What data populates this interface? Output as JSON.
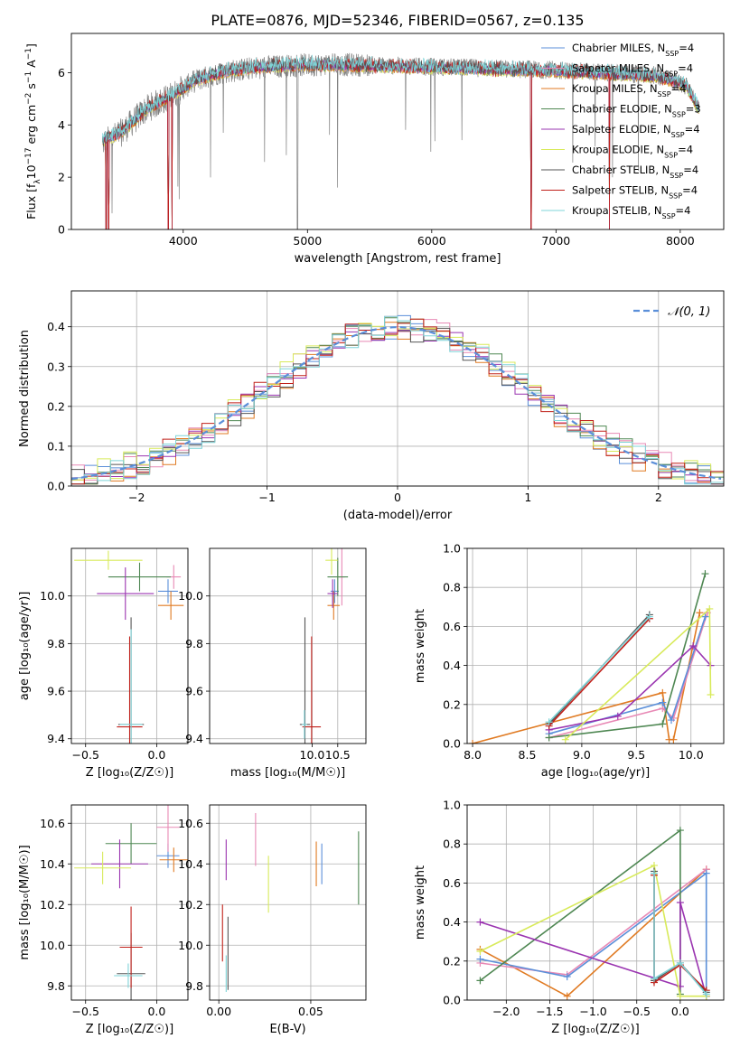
{
  "figure": {
    "title": "PLATE=0876, MJD=52346, FIBERID=0567, z=0.135"
  },
  "colors": {
    "chabrier_miles": "#5b8fd9",
    "salpeter_miles": "#e889b5",
    "kroupa_miles": "#e07a22",
    "chabrier_elodie": "#4e8752",
    "salpeter_elodie": "#9a34b0",
    "kroupa_elodie": "#d8ea5a",
    "chabrier_stelib": "#555555",
    "salpeter_stelib": "#c0201a",
    "kroupa_stelib": "#7fd4d8",
    "grid": "#b0b0b0",
    "normal_curve": "#5b8fd9"
  },
  "chart_data": [
    {
      "id": "spectrum",
      "type": "line",
      "xlabel": "wavelength [Angstrom, rest frame]",
      "ylabel_parts": [
        "Flux [f",
        "λ",
        "10",
        "−17",
        " erg cm",
        "−2",
        " s",
        "−1",
        " A",
        "−1",
        "]"
      ],
      "xlim": [
        3100,
        8350
      ],
      "ylim": [
        0,
        7.5
      ],
      "xticks": [
        4000,
        5000,
        6000,
        7000,
        8000
      ],
      "yticks": [
        0,
        2,
        4,
        6
      ],
      "grid": false,
      "legend_position": "right",
      "legend": [
        {
          "color_key": "chabrier_miles",
          "text": "Chabrier MILES, N",
          "sub": "SSP",
          "tail": "=4"
        },
        {
          "color_key": "salpeter_miles",
          "text": "Salpeter MILES, N",
          "sub": "SSP",
          "tail": "=4"
        },
        {
          "color_key": "kroupa_miles",
          "text": "Kroupa MILES, N",
          "sub": "SSP",
          "tail": "=4"
        },
        {
          "color_key": "chabrier_elodie",
          "text": "Chabrier ELODIE, N",
          "sub": "SSP",
          "tail": "=3"
        },
        {
          "color_key": "salpeter_elodie",
          "text": "Salpeter ELODIE, N",
          "sub": "SSP",
          "tail": "=4"
        },
        {
          "color_key": "kroupa_elodie",
          "text": "Kroupa ELODIE, N",
          "sub": "SSP",
          "tail": "=4"
        },
        {
          "color_key": "chabrier_stelib",
          "text": "Chabrier STELIB, N",
          "sub": "SSP",
          "tail": "=4"
        },
        {
          "color_key": "salpeter_stelib",
          "text": "Salpeter STELIB, N",
          "sub": "SSP",
          "tail": "=4"
        },
        {
          "color_key": "kroupa_stelib",
          "text": "Kroupa STELIB, N",
          "sub": "SSP",
          "tail": "=4"
        }
      ],
      "data_envelope": {
        "x": [
          3350,
          3500,
          3700,
          3900,
          4100,
          4300,
          4600,
          5000,
          5400,
          5800,
          6200,
          6600,
          7000,
          7400,
          7800,
          8050,
          8150
        ],
        "y": [
          3.3,
          3.7,
          4.6,
          5.1,
          5.7,
          6.0,
          6.2,
          6.3,
          6.3,
          6.25,
          6.2,
          6.15,
          6.1,
          6.0,
          5.9,
          5.5,
          4.6
        ]
      },
      "model_envelope": {
        "x": [
          3350,
          3500,
          3700,
          3900,
          4100,
          4300,
          4600,
          5000,
          5400,
          5800,
          6200,
          6600,
          7000,
          7400,
          7800,
          8050,
          8150
        ],
        "y": [
          3.4,
          3.7,
          4.6,
          5.1,
          5.7,
          6.0,
          6.2,
          6.3,
          6.25,
          6.2,
          6.15,
          6.1,
          6.05,
          5.95,
          5.85,
          5.5,
          4.6
        ]
      },
      "model_breaks": [
        3380,
        3400,
        3880,
        3910,
        6800,
        7430
      ]
    },
    {
      "id": "residual-histogram",
      "type": "step",
      "xlabel": "(data-model)/error",
      "ylabel": "Normed distribution",
      "xlim": [
        -2.5,
        2.5
      ],
      "ylim": [
        0,
        0.49
      ],
      "xticks": [
        -2,
        -1,
        0,
        1,
        2
      ],
      "yticks": [
        0.0,
        0.1,
        0.2,
        0.3,
        0.4
      ],
      "grid": true,
      "legend_position": "top-right",
      "legend_label": "𝒩(0, 1)",
      "bins": 50,
      "base_curve_sigma": 1.0,
      "series_offsets": [
        0.0,
        0.006,
        -0.006,
        0.004,
        -0.004,
        0.008,
        -0.008,
        0.002,
        -0.002
      ]
    },
    {
      "id": "age-vs-metallicity",
      "type": "errorbar",
      "xlabel": "Z [log₁₀(Z/Z☉)]",
      "ylabel": "age  [log₁₀(age/yr)]",
      "xlim": [
        -0.6,
        0.22
      ],
      "ylim": [
        9.38,
        10.2
      ],
      "xticks": [
        -0.5,
        0.0
      ],
      "yticks": [
        9.4,
        9.6,
        9.8,
        10.0
      ],
      "grid": true,
      "points": [
        {
          "color_key": "chabrier_miles",
          "x": 0.08,
          "y": 10.02,
          "xerr": 0.07,
          "yerr": 0.05
        },
        {
          "color_key": "salpeter_miles",
          "x": 0.12,
          "y": 10.08,
          "xerr": 0.05,
          "yerr": 0.05
        },
        {
          "color_key": "kroupa_miles",
          "x": 0.1,
          "y": 9.96,
          "xerr": 0.09,
          "yerr": 0.06
        },
        {
          "color_key": "chabrier_elodie",
          "x": -0.12,
          "y": 10.08,
          "xerr": 0.22,
          "yerr": 0.06
        },
        {
          "color_key": "salpeter_elodie",
          "x": -0.22,
          "y": 10.01,
          "xerr": 0.2,
          "yerr": 0.11
        },
        {
          "color_key": "kroupa_elodie",
          "x": -0.34,
          "y": 10.15,
          "xerr": 0.24,
          "yerr": 0.04
        },
        {
          "color_key": "chabrier_stelib",
          "x": -0.18,
          "y": 9.46,
          "xerr": 0.09,
          "yerr": 0.45
        },
        {
          "color_key": "salpeter_stelib",
          "x": -0.19,
          "y": 9.45,
          "xerr": 0.09,
          "yerr": 0.38
        },
        {
          "color_key": "kroupa_stelib",
          "x": -0.18,
          "y": 9.46,
          "xerr": 0.08,
          "yerr": 0.4
        }
      ]
    },
    {
      "id": "age-vs-mass",
      "type": "errorbar",
      "xlabel": "mass [log₁₀(M/M☉)]",
      "ylabel": "",
      "xlim": [
        8.0,
        11.05
      ],
      "ylim": [
        9.38,
        10.2
      ],
      "xticks": [
        10.0,
        10.5
      ],
      "yticks": [
        9.4,
        9.6,
        9.8,
        10.0
      ],
      "grid": true,
      "points": [
        {
          "color_key": "chabrier_miles",
          "x": 10.44,
          "y": 10.02,
          "xerr": 0.08,
          "yerr": 0.05
        },
        {
          "color_key": "salpeter_miles",
          "x": 10.58,
          "y": 10.08,
          "xerr": 0.06,
          "yerr": 0.12
        },
        {
          "color_key": "kroupa_miles",
          "x": 10.42,
          "y": 9.96,
          "xerr": 0.12,
          "yerr": 0.06
        },
        {
          "color_key": "chabrier_elodie",
          "x": 10.5,
          "y": 10.08,
          "xerr": 0.2,
          "yerr": 0.08
        },
        {
          "color_key": "salpeter_elodie",
          "x": 10.4,
          "y": 10.01,
          "xerr": 0.1,
          "yerr": 0.06
        },
        {
          "color_key": "kroupa_elodie",
          "x": 10.38,
          "y": 10.15,
          "xerr": 0.12,
          "yerr": 0.06
        },
        {
          "color_key": "chabrier_stelib",
          "x": 9.86,
          "y": 9.46,
          "xerr": 0.1,
          "yerr": 0.45
        },
        {
          "color_key": "salpeter_stelib",
          "x": 9.99,
          "y": 9.45,
          "xerr": 0.18,
          "yerr": 0.38
        },
        {
          "color_key": "kroupa_stelib",
          "x": 9.85,
          "y": 9.46,
          "xerr": 0.05,
          "yerr": 0.06
        }
      ]
    },
    {
      "id": "mass-weight-vs-age",
      "type": "line",
      "xlabel": "age  [log₁₀(age/yr)]",
      "ylabel": "mass weight",
      "xlim": [
        7.95,
        10.3
      ],
      "ylim": [
        0.0,
        1.0
      ],
      "xticks": [
        8.0,
        8.5,
        9.0,
        9.5,
        10.0
      ],
      "yticks": [
        0.0,
        0.2,
        0.4,
        0.6,
        0.8,
        1.0
      ],
      "grid": true,
      "series": [
        {
          "color_key": "kroupa_miles",
          "x": [
            8.0,
            9.74,
            9.8,
            9.84,
            10.08
          ],
          "y": [
            0.0,
            0.26,
            0.02,
            0.02,
            0.67
          ]
        },
        {
          "color_key": "salpeter_miles",
          "x": [
            8.7,
            9.74,
            9.84,
            10.15
          ],
          "y": [
            0.03,
            0.18,
            0.13,
            0.67
          ]
        },
        {
          "color_key": "chabrier_miles",
          "x": [
            8.7,
            9.74,
            9.82,
            10.13
          ],
          "y": [
            0.05,
            0.21,
            0.12,
            0.65
          ]
        },
        {
          "color_key": "chabrier_elodie",
          "x": [
            8.7,
            9.74,
            10.13
          ],
          "y": [
            0.03,
            0.1,
            0.87
          ]
        },
        {
          "color_key": "salpeter_elodie",
          "x": [
            8.7,
            9.33,
            10.02,
            10.18
          ],
          "y": [
            0.07,
            0.14,
            0.5,
            0.4
          ]
        },
        {
          "color_key": "kroupa_elodie",
          "x": [
            8.85,
            10.17,
            10.18
          ],
          "y": [
            0.02,
            0.69,
            0.25
          ]
        },
        {
          "color_key": "chabrier_stelib",
          "x": [
            8.7,
            9.62
          ],
          "y": [
            0.1,
            0.66
          ]
        },
        {
          "color_key": "salpeter_stelib",
          "x": [
            8.7,
            9.62
          ],
          "y": [
            0.09,
            0.64
          ]
        },
        {
          "color_key": "kroupa_stelib",
          "x": [
            8.7,
            9.62
          ],
          "y": [
            0.11,
            0.65
          ]
        }
      ]
    },
    {
      "id": "mass-vs-metallicity",
      "type": "errorbar",
      "xlabel": "Z [log₁₀(Z/Z☉)]",
      "ylabel": "mass [log₁₀(M/M☉)]",
      "xlim": [
        -0.6,
        0.22
      ],
      "ylim": [
        9.73,
        10.69
      ],
      "xticks": [
        -0.5,
        0.0
      ],
      "yticks": [
        9.8,
        10.0,
        10.2,
        10.4,
        10.6
      ],
      "grid": true,
      "points": [
        {
          "color_key": "chabrier_miles",
          "x": 0.08,
          "y": 10.44,
          "xerr": 0.08,
          "yerr": 0.06
        },
        {
          "color_key": "salpeter_miles",
          "x": 0.08,
          "y": 10.58,
          "xerr": 0.08,
          "yerr": 0.12
        },
        {
          "color_key": "kroupa_miles",
          "x": 0.12,
          "y": 10.42,
          "xerr": 0.1,
          "yerr": 0.06
        },
        {
          "color_key": "chabrier_elodie",
          "x": -0.18,
          "y": 10.5,
          "xerr": 0.18,
          "yerr": 0.1
        },
        {
          "color_key": "salpeter_elodie",
          "x": -0.26,
          "y": 10.4,
          "xerr": 0.2,
          "yerr": 0.12
        },
        {
          "color_key": "kroupa_elodie",
          "x": -0.38,
          "y": 10.38,
          "xerr": 0.2,
          "yerr": 0.08
        },
        {
          "color_key": "chabrier_stelib",
          "x": -0.18,
          "y": 9.86,
          "xerr": 0.1,
          "yerr": 0.2
        },
        {
          "color_key": "salpeter_stelib",
          "x": -0.18,
          "y": 9.99,
          "xerr": 0.08,
          "yerr": 0.2
        },
        {
          "color_key": "kroupa_stelib",
          "x": -0.2,
          "y": 9.85,
          "xerr": 0.1,
          "yerr": 0.06
        }
      ]
    },
    {
      "id": "mass-vs-extinction",
      "type": "errorbar",
      "xlabel": "E(B-V)",
      "ylabel": "",
      "xlim": [
        -0.005,
        0.08
      ],
      "ylim": [
        9.73,
        10.69
      ],
      "xticks": [
        0.0,
        0.05
      ],
      "yticks": [
        9.8,
        10.0,
        10.2,
        10.4,
        10.6
      ],
      "grid": true,
      "points": [
        {
          "color_key": "chabrier_miles",
          "x": 0.056,
          "y": 10.4,
          "xerr": 0.0,
          "yerr": 0.1
        },
        {
          "color_key": "salpeter_miles",
          "x": 0.02,
          "y": 10.52,
          "xerr": 0.0,
          "yerr": 0.13
        },
        {
          "color_key": "kroupa_miles",
          "x": 0.053,
          "y": 10.4,
          "xerr": 0.0,
          "yerr": 0.11
        },
        {
          "color_key": "chabrier_elodie",
          "x": 0.076,
          "y": 10.38,
          "xerr": 0.0,
          "yerr": 0.18
        },
        {
          "color_key": "salpeter_elodie",
          "x": 0.004,
          "y": 10.42,
          "xerr": 0.0,
          "yerr": 0.1
        },
        {
          "color_key": "kroupa_elodie",
          "x": 0.027,
          "y": 10.3,
          "xerr": 0.0,
          "yerr": 0.14
        },
        {
          "color_key": "chabrier_stelib",
          "x": 0.005,
          "y": 9.96,
          "xerr": 0.0,
          "yerr": 0.18
        },
        {
          "color_key": "salpeter_stelib",
          "x": 0.002,
          "y": 10.06,
          "xerr": 0.0,
          "yerr": 0.14
        },
        {
          "color_key": "kroupa_stelib",
          "x": 0.004,
          "y": 9.86,
          "xerr": 0.0,
          "yerr": 0.09
        }
      ]
    },
    {
      "id": "mass-weight-vs-metallicity",
      "type": "line",
      "xlabel": "Z [log₁₀(Z/Z☉)]",
      "ylabel": "mass weight",
      "xlim": [
        -2.45,
        0.5
      ],
      "ylim": [
        0.0,
        1.0
      ],
      "xticks": [
        -2.0,
        -1.5,
        -1.0,
        -0.5,
        0.0
      ],
      "yticks": [
        0.0,
        0.2,
        0.4,
        0.6,
        0.8,
        1.0
      ],
      "grid": true,
      "series": [
        {
          "color_key": "kroupa_miles",
          "x": [
            -2.3,
            -1.3,
            0.3
          ],
          "y": [
            0.26,
            0.02,
            0.67
          ]
        },
        {
          "color_key": "salpeter_miles",
          "x": [
            -2.3,
            -1.3,
            0.3
          ],
          "y": [
            0.19,
            0.13,
            0.67
          ]
        },
        {
          "color_key": "chabrier_miles",
          "x": [
            -2.3,
            -1.3,
            0.3,
            0.3
          ],
          "y": [
            0.21,
            0.12,
            0.65,
            0.02
          ]
        },
        {
          "color_key": "chabrier_elodie",
          "x": [
            -2.3,
            0.0,
            0.0
          ],
          "y": [
            0.1,
            0.87,
            0.03
          ]
        },
        {
          "color_key": "salpeter_elodie",
          "x": [
            -2.3,
            0.0,
            0.0,
            0.3
          ],
          "y": [
            0.4,
            0.07,
            0.5,
            0.02
          ]
        },
        {
          "color_key": "kroupa_elodie",
          "x": [
            -2.3,
            -0.3,
            0.0,
            0.3
          ],
          "y": [
            0.25,
            0.69,
            0.02,
            0.02
          ]
        },
        {
          "color_key": "chabrier_stelib",
          "x": [
            -0.3,
            -0.3,
            0.0,
            0.3
          ],
          "y": [
            0.66,
            0.1,
            0.19,
            0.04
          ]
        },
        {
          "color_key": "salpeter_stelib",
          "x": [
            -0.3,
            -0.3,
            0.0,
            0.3
          ],
          "y": [
            0.64,
            0.09,
            0.18,
            0.05
          ]
        },
        {
          "color_key": "kroupa_stelib",
          "x": [
            -0.3,
            -0.3,
            0.0,
            0.3
          ],
          "y": [
            0.65,
            0.11,
            0.19,
            0.03
          ]
        }
      ]
    }
  ]
}
